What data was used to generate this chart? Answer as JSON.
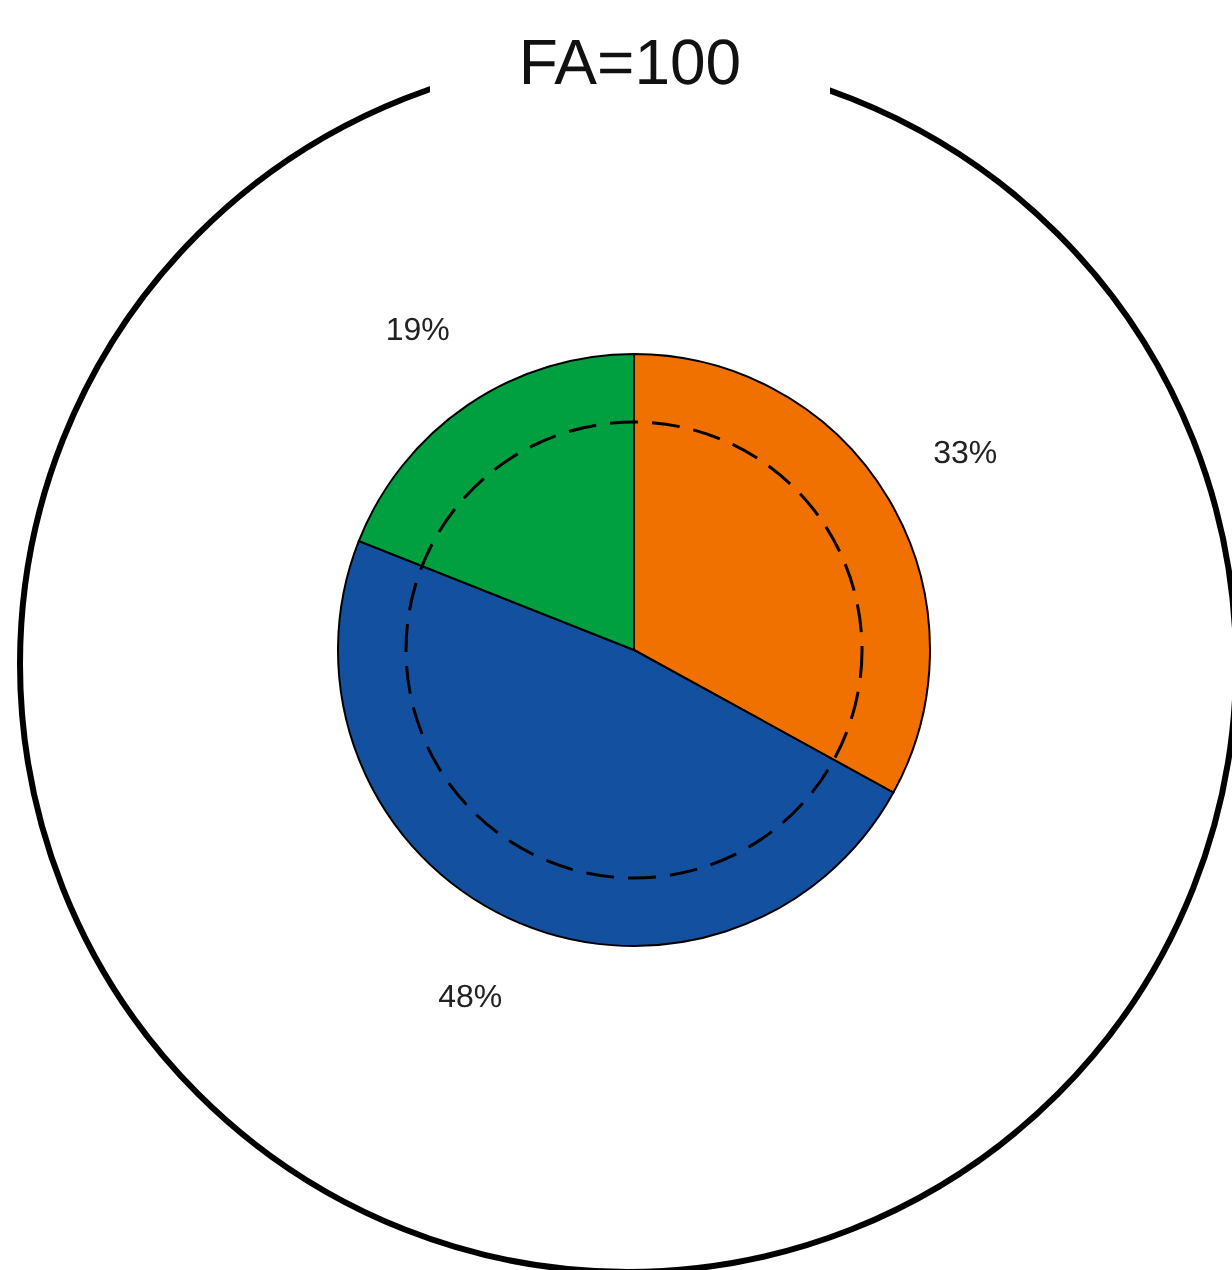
{
  "chart_data": {
    "type": "pie",
    "title": "FA=100",
    "categories": [
      null,
      null,
      null
    ],
    "values": [
      33,
      48,
      19
    ],
    "colors": [
      "#f07000",
      "#1450a0",
      "#00a040"
    ],
    "value_labels": [
      "33%",
      "48%",
      "19%"
    ]
  }
}
